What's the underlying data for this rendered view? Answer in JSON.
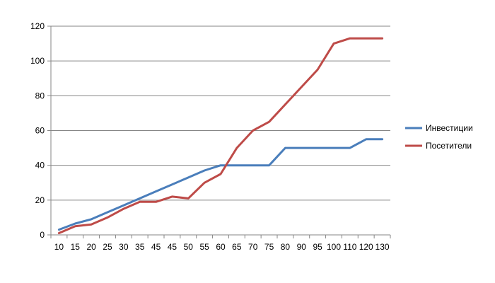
{
  "chart_data": {
    "type": "line",
    "categories": [
      "10",
      "15",
      "20",
      "25",
      "30",
      "35",
      "45",
      "45",
      "50",
      "55",
      "60",
      "65",
      "70",
      "75",
      "80",
      "90",
      "95",
      "100",
      "110",
      "120",
      "130"
    ],
    "series": [
      {
        "name": "Инвестиции",
        "color": "#4a7ebb",
        "values": [
          3,
          6.5,
          9,
          13,
          17,
          21,
          25,
          29,
          33,
          37,
          40,
          40,
          40,
          40,
          50,
          50,
          50,
          50,
          50,
          55,
          55
        ]
      },
      {
        "name": "Посетители",
        "color": "#be4b48",
        "values": [
          1,
          5,
          6,
          10,
          15,
          19,
          19,
          22,
          21,
          30,
          35,
          50,
          60,
          65,
          75,
          85,
          95,
          110,
          113,
          113,
          113
        ]
      }
    ],
    "ylim": [
      0,
      120
    ],
    "yticks": [
      "0",
      "20",
      "40",
      "60",
      "80",
      "100",
      "120"
    ],
    "grid": true,
    "legend_position": "right"
  }
}
